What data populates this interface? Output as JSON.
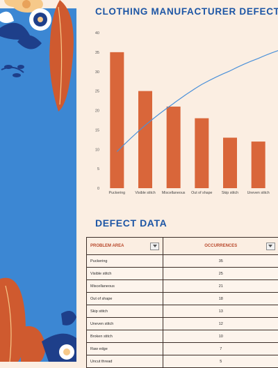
{
  "title": "CLOTHING MANUFACTURER DEFECT",
  "table_heading": "DEFECT DATA",
  "colors": {
    "title": "#1d56a5",
    "bar": "#d9663a",
    "line": "#4a90d9",
    "sidebar_blue": "#3c87d3",
    "leaf_orange": "#cf5a2f",
    "navy": "#1e3f8a",
    "background": "#fbeee2"
  },
  "chart_data": {
    "type": "bar",
    "categories": [
      "Puckering",
      "Visible stitch",
      "Miscellaneous",
      "Out of shape",
      "Skip stitch",
      "Uneven stitch"
    ],
    "series": [
      {
        "type": "bar",
        "values": [
          35,
          25,
          21,
          18,
          13,
          12
        ]
      },
      {
        "type": "line",
        "values": [
          9.4,
          16.2,
          21.8,
          26.7,
          30.2,
          33.4
        ]
      }
    ],
    "ylim": [
      0,
      40
    ],
    "yticks": [
      0,
      5,
      10,
      15,
      20,
      25,
      30,
      35,
      40
    ],
    "grid": false
  },
  "table": {
    "headers": [
      "PROBLEM AREA",
      "OCCURRENCES"
    ],
    "rows": [
      [
        "Puckering",
        "35"
      ],
      [
        "Visible stitch",
        "25"
      ],
      [
        "Miscellaneous",
        "21"
      ],
      [
        "Out of shape",
        "18"
      ],
      [
        "Skip stitch",
        "13"
      ],
      [
        "Uneven stitch",
        "12"
      ],
      [
        "Broken stitch",
        "10"
      ],
      [
        "Raw edge",
        "7"
      ],
      [
        "Uncut thread",
        "5"
      ]
    ]
  }
}
